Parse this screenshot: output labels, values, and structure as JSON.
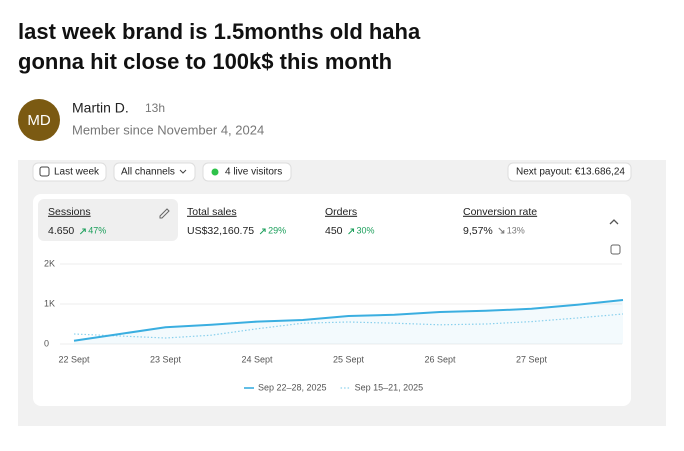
{
  "post": {
    "title_lines": [
      "last week brand is 1.5months old haha",
      "gonna hit close to 100k$ this month"
    ],
    "avatar": "MD",
    "author": "Martin D.",
    "time": "13h",
    "member_since": "Member since November 4, 2024"
  },
  "dashboard": {
    "filters": [
      "Last week",
      "All channels",
      "4 live visitors"
    ],
    "payout": "Next payout: €13.686,24",
    "metrics": [
      {
        "label": "Sessions",
        "value": "4.650",
        "change": "47%"
      },
      {
        "label": "Total sales",
        "value": "US$32,160.75",
        "change": "29%"
      },
      {
        "label": "Orders",
        "value": "450",
        "change": "30%"
      },
      {
        "label": "Conversion rate",
        "value": "9,57%",
        "change": "13%"
      }
    ],
    "chart_data": {
      "type": "line",
      "categories": [
        "22 Sept",
        null,
        "23 Sept",
        null,
        "24 Sept",
        null,
        "25 Sept",
        null,
        "26 Sept",
        null,
        "27 Sept",
        null,
        null
      ],
      "series": [
        {
          "name": "Sep 22–28, 2025",
          "color": "#3aaee0",
          "style": "solid",
          "values": [
            80,
            250,
            420,
            480,
            560,
            600,
            700,
            730,
            800,
            830,
            880,
            980,
            1100
          ]
        },
        {
          "name": "Sep 15–21, 2025",
          "color": "#8fd3ee",
          "style": "dotted",
          "values": [
            250,
            200,
            150,
            220,
            380,
            520,
            550,
            520,
            480,
            500,
            560,
            650,
            750
          ]
        }
      ],
      "ylim": [
        0,
        2000
      ],
      "yticks": [
        0,
        {
          "value": 1000,
          "label": "1K"
        },
        {
          "value": 2000,
          "label": "2K"
        }
      ],
      "grid": true
    }
  }
}
